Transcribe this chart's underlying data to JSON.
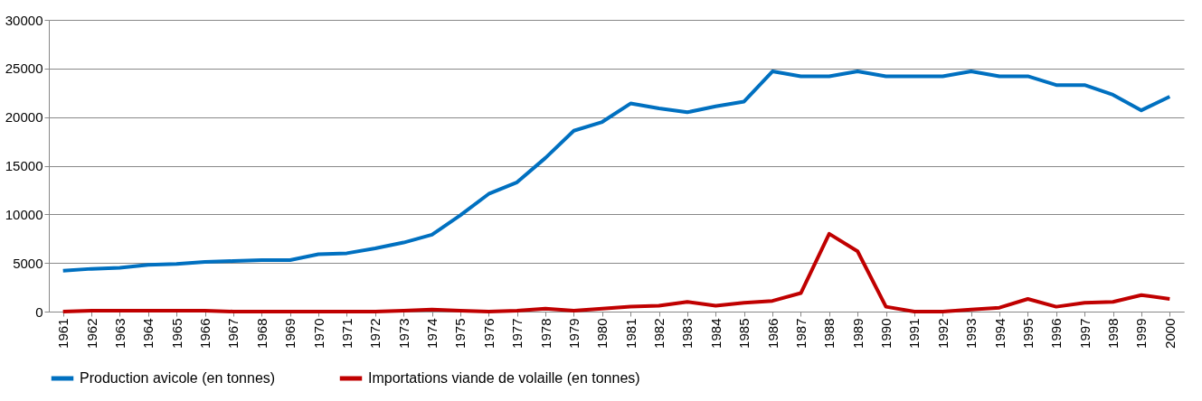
{
  "chart_data": {
    "type": "line",
    "categories": [
      "1961",
      "1962",
      "1963",
      "1964",
      "1965",
      "1966",
      "1967",
      "1968",
      "1969",
      "1970",
      "1971",
      "1972",
      "1973",
      "1974",
      "1975",
      "1976",
      "1977",
      "1978",
      "1979",
      "1980",
      "1981",
      "1982",
      "1983",
      "1984",
      "1985",
      "1986",
      "1987",
      "1988",
      "1989",
      "1990",
      "1991",
      "1992",
      "1993",
      "1994",
      "1995",
      "1996",
      "1997",
      "1998",
      "1999",
      "2000"
    ],
    "series": [
      {
        "name": "Production avicole (en tonnes)",
        "color": "#0070c0",
        "values": [
          4200,
          4400,
          4500,
          4800,
          4900,
          5100,
          5200,
          5300,
          5300,
          5900,
          6000,
          6500,
          7100,
          7900,
          9900,
          12100,
          13300,
          15800,
          18600,
          19500,
          21400,
          20900,
          20500,
          21100,
          21600,
          24700,
          24200,
          24200,
          24700,
          24200,
          24200,
          24200,
          24700,
          24200,
          24200,
          23300,
          23300,
          22300,
          20700,
          22100
        ]
      },
      {
        "name": "Importations viande de volaille (en tonnes)",
        "color": "#c00000",
        "values": [
          0,
          100,
          100,
          100,
          100,
          100,
          0,
          0,
          0,
          0,
          0,
          0,
          100,
          200,
          100,
          0,
          100,
          300,
          100,
          300,
          500,
          600,
          1000,
          600,
          900,
          1100,
          1900,
          8000,
          6200,
          500,
          0,
          0,
          200,
          400,
          1300,
          500,
          900,
          1000,
          1700,
          1300
        ]
      }
    ],
    "ylim": [
      0,
      30000
    ],
    "yticks": [
      0,
      5000,
      10000,
      15000,
      20000,
      25000,
      30000
    ],
    "grid": "y",
    "legend": "bottom",
    "marker": "none",
    "line_style": "solid"
  }
}
